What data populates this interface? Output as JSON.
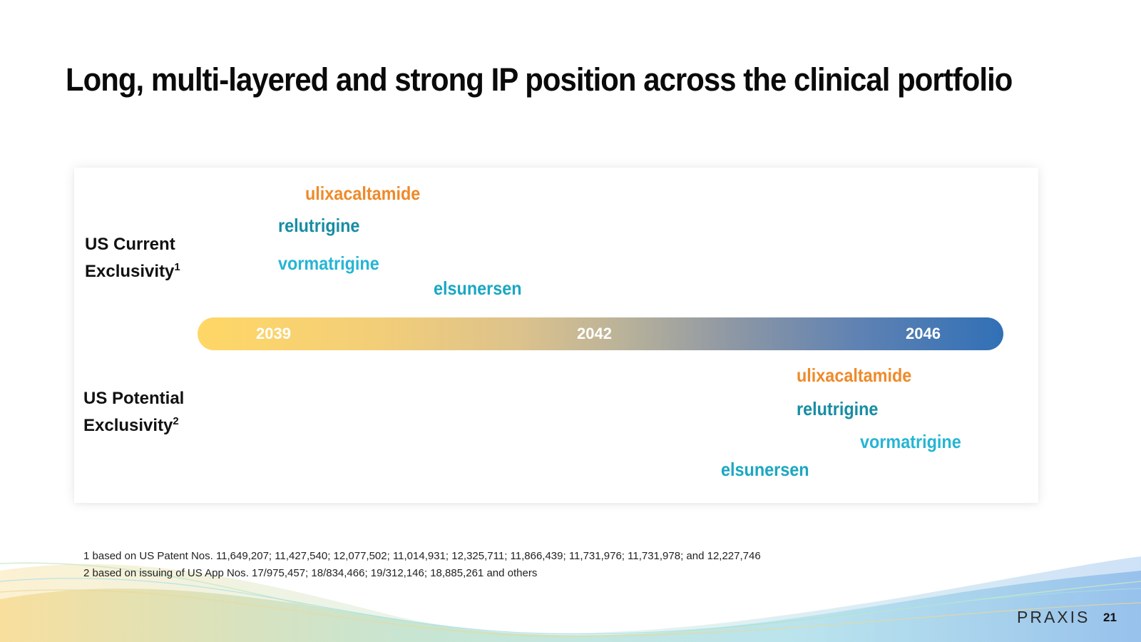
{
  "slide": {
    "title": "Long, multi-layered and strong IP position across the clinical portfolio",
    "page_number": "21",
    "logo_text": "PRAXIS"
  },
  "rows": {
    "current": {
      "label_line1": "US Current",
      "label_line2": "Exclusivity",
      "sup": "1"
    },
    "potential": {
      "label_line1": "US Potential",
      "label_line2": "Exclusivity",
      "sup": "2"
    }
  },
  "timeline": {
    "years": [
      "2039",
      "2042",
      "2046"
    ],
    "colors": {
      "start": "#ffd766",
      "end": "#3170b6"
    }
  },
  "drugs": {
    "current": [
      "ulixacaltamide",
      "relutrigine",
      "vormatrigine",
      "elsunersen"
    ],
    "potential": [
      "ulixacaltamide",
      "relutrigine",
      "vormatrigine",
      "elsunersen"
    ]
  },
  "drug_colors": {
    "ulixacaltamide": "#ee8a2a",
    "relutrigine": "#178da3",
    "vormatrigine": "#26b5d4",
    "elsunersen": "#1ba7c1"
  },
  "footnotes": [
    "1 based on US Patent Nos. 11,649,207; 11,427,540; 12,077,502; 11,014,931; 12,325,711; 11,866,439; 11,731,976; 11,731,978; and 12,227,746",
    "2 based on issuing of US App Nos. 17/975,457;  18/834,466; 19/312,146; 18,885,261 and others"
  ]
}
